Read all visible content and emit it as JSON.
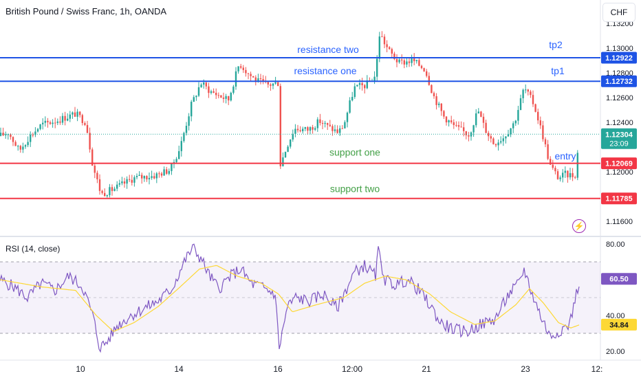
{
  "title": "British Pound / Swiss Franc, 1h, OANDA",
  "currency_button": "CHF",
  "rsi_title": "RSI (14, close)",
  "icons": {
    "flash": "lightning-bolt-icon"
  },
  "colors": {
    "up": "#26a69a",
    "down": "#ef5350",
    "resistance": "#1e53e5",
    "support": "#f23645",
    "label_blue": "#2962ff",
    "label_green": "#43a047",
    "rsi": "#7e57c2",
    "rsi_ma": "#fdd835"
  },
  "chart_data": [
    {
      "type": "candlestick",
      "title": "British Pound / Swiss Franc, 1h, OANDA",
      "y_ticks": [
        1.116,
        1.12,
        1.124,
        1.126,
        1.128,
        1.13,
        1.132
      ],
      "x_ticks": [
        "10",
        "14",
        "16",
        "12:00",
        "21",
        "23",
        "12:"
      ],
      "ylim": [
        1.1148,
        1.132
      ],
      "price_tags": [
        {
          "label": "1.12922",
          "value": 1.12922,
          "color": "blue"
        },
        {
          "label": "1.12732",
          "value": 1.12732,
          "color": "blue"
        },
        {
          "label": "1.12304",
          "value": 1.12304,
          "sub": "23:09",
          "color": "green"
        },
        {
          "label": "1.12069",
          "value": 1.12069,
          "color": "red"
        },
        {
          "label": "1.11785",
          "value": 1.11785,
          "color": "red"
        }
      ],
      "levels": [
        {
          "name": "resistance two",
          "value": 1.12922,
          "color": "blue"
        },
        {
          "name": "resistance one",
          "value": 1.12732,
          "color": "blue"
        },
        {
          "name": "support one",
          "value": 1.12069,
          "color": "red"
        },
        {
          "name": "support two",
          "value": 1.11785,
          "color": "red"
        }
      ],
      "annotations": [
        "resistance two",
        "resistance one",
        "support one",
        "support two",
        "tp2",
        "tp1",
        "entry"
      ],
      "current_price": 1.12304,
      "countdown": "23:09",
      "path_keypoints": [
        [
          0,
          1.1229
        ],
        [
          12,
          1.1232
        ],
        [
          28,
          1.1217
        ],
        [
          42,
          1.1228
        ],
        [
          60,
          1.1238
        ],
        [
          85,
          1.1242
        ],
        [
          110,
          1.1247
        ],
        [
          125,
          1.124
        ],
        [
          135,
          1.1205
        ],
        [
          147,
          1.1182
        ],
        [
          165,
          1.1186
        ],
        [
          195,
          1.1195
        ],
        [
          225,
          1.1197
        ],
        [
          248,
          1.1202
        ],
        [
          262,
          1.122
        ],
        [
          278,
          1.1254
        ],
        [
          292,
          1.1272
        ],
        [
          306,
          1.1265
        ],
        [
          318,
          1.1262
        ],
        [
          332,
          1.1258
        ],
        [
          348,
          1.1288
        ],
        [
          360,
          1.128
        ],
        [
          372,
          1.1274
        ],
        [
          388,
          1.127
        ],
        [
          405,
          1.1272
        ],
        [
          407,
          1.1205
        ],
        [
          418,
          1.1222
        ],
        [
          428,
          1.1235
        ],
        [
          448,
          1.1234
        ],
        [
          465,
          1.1241
        ],
        [
          478,
          1.1236
        ],
        [
          492,
          1.1232
        ],
        [
          500,
          1.1238
        ],
        [
          515,
          1.1268
        ],
        [
          532,
          1.127
        ],
        [
          546,
          1.1278
        ],
        [
          552,
          1.1312
        ],
        [
          565,
          1.1298
        ],
        [
          580,
          1.1288
        ],
        [
          600,
          1.129
        ],
        [
          618,
          1.1283
        ],
        [
          630,
          1.1262
        ],
        [
          645,
          1.1245
        ],
        [
          662,
          1.1236
        ],
        [
          682,
          1.123
        ],
        [
          695,
          1.125
        ],
        [
          705,
          1.1235
        ],
        [
          718,
          1.1223
        ],
        [
          732,
          1.1228
        ],
        [
          748,
          1.124
        ],
        [
          762,
          1.1268
        ],
        [
          776,
          1.1255
        ],
        [
          788,
          1.1232
        ],
        [
          800,
          1.1205
        ],
        [
          812,
          1.1195
        ],
        [
          822,
          1.1198
        ],
        [
          836,
          1.1197
        ],
        [
          843,
          1.123
        ]
      ]
    },
    {
      "type": "line",
      "title": "RSI (14, close)",
      "y_ticks": [
        20,
        40,
        60,
        80
      ],
      "bands": [
        30,
        50,
        70
      ],
      "ylim": [
        15,
        83
      ],
      "last_values": [
        {
          "label": "60.50",
          "value": 60.5
        },
        {
          "label": "34.84",
          "value": 34.84
        }
      ],
      "series": [
        {
          "name": "RSI",
          "keypoints": [
            [
              0,
              60
            ],
            [
              20,
              56
            ],
            [
              40,
              50
            ],
            [
              60,
              58
            ],
            [
              80,
              54
            ],
            [
              100,
              62
            ],
            [
              120,
              56
            ],
            [
              135,
              40
            ],
            [
              145,
              22
            ],
            [
              155,
              25
            ],
            [
              170,
              34
            ],
            [
              190,
              40
            ],
            [
              210,
              44
            ],
            [
              230,
              48
            ],
            [
              250,
              55
            ],
            [
              268,
              70
            ],
            [
              280,
              78
            ],
            [
              292,
              72
            ],
            [
              305,
              62
            ],
            [
              318,
              55
            ],
            [
              335,
              62
            ],
            [
              350,
              66
            ],
            [
              365,
              58
            ],
            [
              380,
              56
            ],
            [
              400,
              52
            ],
            [
              406,
              22
            ],
            [
              418,
              45
            ],
            [
              430,
              50
            ],
            [
              450,
              48
            ],
            [
              470,
              52
            ],
            [
              490,
              44
            ],
            [
              500,
              52
            ],
            [
              515,
              64
            ],
            [
              530,
              68
            ],
            [
              546,
              62
            ],
            [
              550,
              76
            ],
            [
              560,
              60
            ],
            [
              575,
              57
            ],
            [
              592,
              60
            ],
            [
              610,
              54
            ],
            [
              628,
              44
            ],
            [
              640,
              36
            ],
            [
              660,
              32
            ],
            [
              680,
              31
            ],
            [
              700,
              35
            ],
            [
              720,
              38
            ],
            [
              740,
              52
            ],
            [
              755,
              58
            ],
            [
              762,
              66
            ],
            [
              772,
              54
            ],
            [
              786,
              40
            ],
            [
              800,
              28
            ],
            [
              815,
              32
            ],
            [
              828,
              35
            ],
            [
              843,
              60.5
            ]
          ]
        },
        {
          "name": "RSI-based MA",
          "keypoints": [
            [
              0,
              60
            ],
            [
              60,
              56
            ],
            [
              110,
              54
            ],
            [
              140,
              40
            ],
            [
              165,
              31
            ],
            [
              195,
              36
            ],
            [
              230,
              45
            ],
            [
              262,
              56
            ],
            [
              290,
              66
            ],
            [
              315,
              68
            ],
            [
              345,
              62
            ],
            [
              380,
              58
            ],
            [
              405,
              52
            ],
            [
              425,
              42
            ],
            [
              460,
              46
            ],
            [
              500,
              50
            ],
            [
              530,
              58
            ],
            [
              560,
              62
            ],
            [
              590,
              60
            ],
            [
              625,
              52
            ],
            [
              655,
              42
            ],
            [
              690,
              35
            ],
            [
              720,
              37
            ],
            [
              750,
              46
            ],
            [
              770,
              55
            ],
            [
              790,
              47
            ],
            [
              812,
              36
            ],
            [
              830,
              33
            ],
            [
              843,
              34.84
            ]
          ]
        }
      ]
    }
  ]
}
